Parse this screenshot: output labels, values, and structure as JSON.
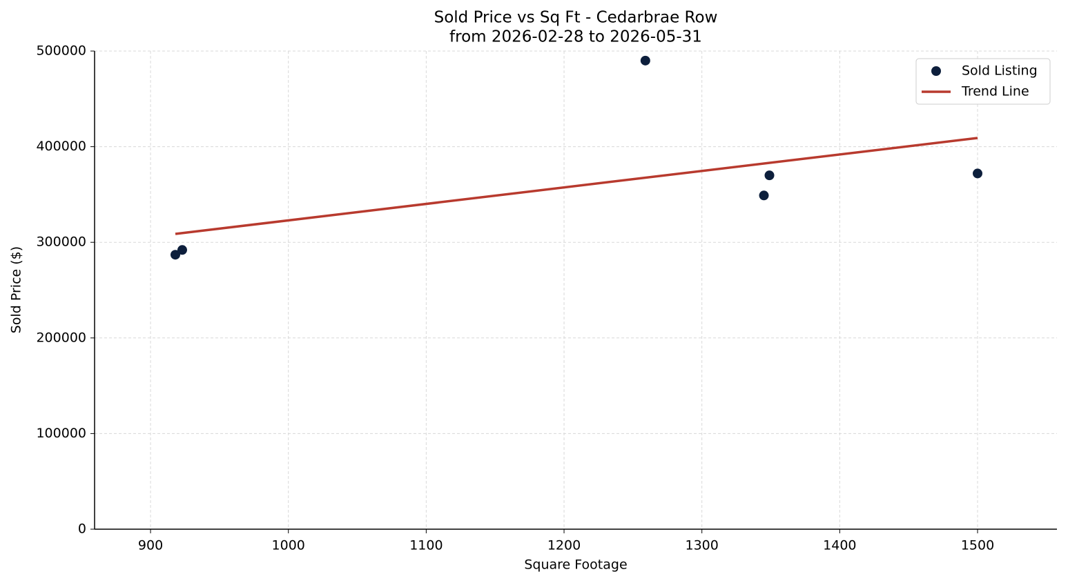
{
  "chart_data": {
    "type": "scatter",
    "title": "Sold Price vs Sq Ft - Cedarbrae Row",
    "subtitle": "from 2026-02-28 to 2026-05-31",
    "x_label": "Square Footage",
    "y_label": "Sold Price ($)",
    "xlim": [
      859.4,
      1557.6
    ],
    "xticks": [
      900,
      1000,
      1100,
      1200,
      1300,
      1400,
      1500
    ],
    "ylim": [
      0,
      500000
    ],
    "yticks": [
      0,
      100000,
      200000,
      300000,
      400000,
      500000
    ],
    "grid": true,
    "legend": "upper right",
    "series": [
      {
        "name": "Sold Listing",
        "mark": "point",
        "color": "#0d1f3c",
        "x": [
          918,
          923,
          1259,
          1345,
          1349,
          1500
        ],
        "values": [
          287000,
          292000,
          490000,
          349000,
          370000,
          372000
        ]
      },
      {
        "name": "Trend Line",
        "mark": "line",
        "color": "#b83a2e",
        "x": [
          918,
          1500
        ],
        "values": [
          308800,
          409100
        ]
      }
    ]
  }
}
